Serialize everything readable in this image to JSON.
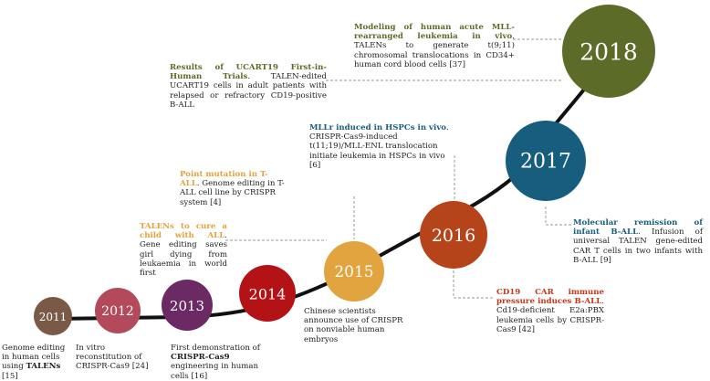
{
  "milestones": [
    {
      "year": "2011",
      "color": "#7a5a47"
    },
    {
      "year": "2012",
      "color": "#b24a5c"
    },
    {
      "year": "2013",
      "color": "#6b2a63"
    },
    {
      "year": "2014",
      "color": "#b31317"
    },
    {
      "year": "2015",
      "color": "#e2a43e"
    },
    {
      "year": "2016",
      "color": "#b5441a"
    },
    {
      "year": "2017",
      "color": "#175d7d"
    },
    {
      "year": "2018",
      "color": "#5c6b28"
    }
  ],
  "annotations": {
    "a2011": {
      "text": "Genome editing in human cells using",
      "kw": "TALENs",
      "ref": " [15]"
    },
    "a2012": {
      "text": "In vitro reconstitution of CRISPR-Cas9 [24]"
    },
    "a2013": {
      "text": "First demonstration of",
      "kw": "CRISPR-Cas9",
      "tail": " engineering in human cells [16]"
    },
    "a2015": {
      "text": "Chinese scientists announce use of CRISPR on nonviable human embryos"
    },
    "talens": {
      "highlight": "TALENs to cure a child with ALL",
      "text": ". Gene editing saves girl dying from leukaemia in world first",
      "color": "#e2a43e"
    },
    "point": {
      "highlight": "Point mutation in T-ALL",
      "text": ". Genome editing in T-ALL cell line by CRISPR system [4]",
      "color": "#e2a43e"
    },
    "cd19": {
      "highlight": "CD19 CAR immune pressure induces B-ALL",
      "text": ". Cd19-deficient E2a:PBX leukemia cells by CRISPR-Cas9 [42]",
      "color": "#c0391b"
    },
    "mllr": {
      "highlight": "MLLr induced in HSPCs in vivo",
      "text": ". CRISPR-Cas9-induced t(11;19)/MLL-ENL translocation initiate leukemia in HSPCs in vivo [6]",
      "color": "#175d7d"
    },
    "molecular": {
      "highlight": "Molecular remission of infant B-ALL",
      "text": ". Infusion of universal TALEN gene-edited CAR T cells in two infants with B-ALL [9]",
      "color": "#175d7d"
    },
    "ucart": {
      "highlight": "Results of UCART19 First-in-Human Trials",
      "text": ". TALEN-edited UCART19 cells in adult patients with relapsed or refractory CD19-positive B-ALL",
      "color": "#5c6b28"
    },
    "modeling": {
      "highlight": "Modeling of human acute MLL-rearranged leukemia in vivo",
      "text": ". TALENs to generate t(9;11) chromosomal translocations in CD34+ human cord blood cells [37]",
      "color": "#5c6b28"
    }
  }
}
